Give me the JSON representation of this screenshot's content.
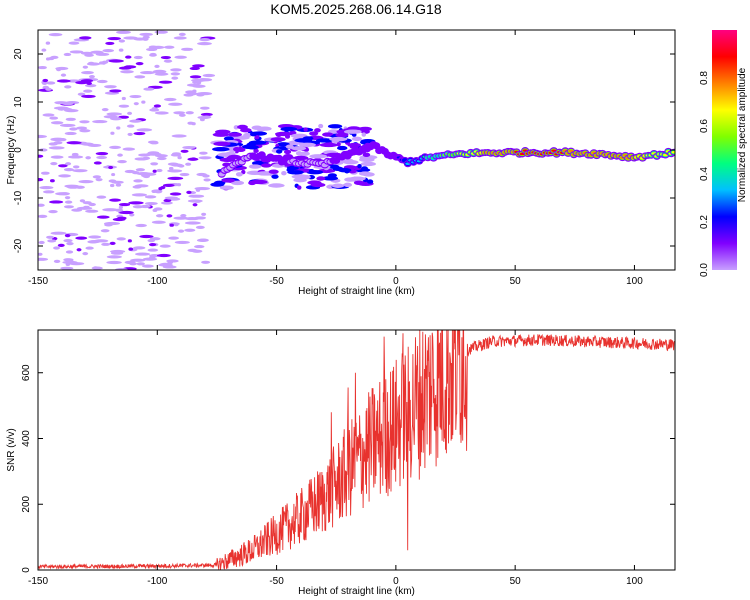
{
  "chart_data": [
    {
      "type": "heatmap",
      "title": "KOM5.2025.268.06.14.G18",
      "xlabel": "Height of straight line (km)",
      "ylabel": "Frequency (Hz)",
      "xlim": [
        -150,
        117
      ],
      "ylim": [
        -25,
        25
      ],
      "x_ticks": [
        -150,
        -100,
        -50,
        0,
        50,
        100
      ],
      "y_ticks": [
        -20,
        -10,
        0,
        10,
        20
      ],
      "colorbar": {
        "label": "Normalized spectral amplitude",
        "range": [
          0,
          1
        ],
        "ticks": [
          "0.0",
          "0.2",
          "0.4",
          "0.6",
          "0.8"
        ],
        "colors": [
          "#ffffff",
          "#c8a0ff",
          "#8000ff",
          "#0000ff",
          "#00c0ff",
          "#00ff80",
          "#80ff00",
          "#ffff00",
          "#ff8000",
          "#ff0000",
          "#ff0080"
        ]
      },
      "signal_track": [
        {
          "x": -73,
          "f": -5.0,
          "amp": 0.18
        },
        {
          "x": -60,
          "f": -1.0,
          "amp": 0.2
        },
        {
          "x": -45,
          "f": -2.5,
          "amp": 0.2
        },
        {
          "x": -30,
          "f": -3.0,
          "amp": 0.18
        },
        {
          "x": -20,
          "f": -1.0,
          "amp": 0.25
        },
        {
          "x": -10,
          "f": 1.0,
          "amp": 0.3
        },
        {
          "x": -3,
          "f": -1.0,
          "amp": 0.25
        },
        {
          "x": 5,
          "f": -2.5,
          "amp": 0.35
        },
        {
          "x": 15,
          "f": -1.5,
          "amp": 0.5
        },
        {
          "x": 30,
          "f": -0.7,
          "amp": 0.7
        },
        {
          "x": 50,
          "f": -0.5,
          "amp": 0.85
        },
        {
          "x": 70,
          "f": -0.5,
          "amp": 0.85
        },
        {
          "x": 85,
          "f": -0.8,
          "amp": 0.8
        },
        {
          "x": 100,
          "f": -1.5,
          "amp": 0.75
        },
        {
          "x": 117,
          "f": -0.5,
          "amp": 0.7
        }
      ]
    },
    {
      "type": "line",
      "title": "",
      "xlabel": "Height of straight line (km)",
      "ylabel": "SNR (v/v)",
      "xlim": [
        -150,
        117
      ],
      "ylim": [
        0,
        730
      ],
      "x_ticks": [
        -150,
        -100,
        -50,
        0,
        50,
        100
      ],
      "y_ticks": [
        0,
        200,
        400,
        600
      ],
      "color": "#e8322e",
      "trend": [
        {
          "x": -150,
          "y": 10
        },
        {
          "x": -100,
          "y": 12
        },
        {
          "x": -75,
          "y": 15
        },
        {
          "x": -60,
          "y": 60
        },
        {
          "x": -50,
          "y": 110
        },
        {
          "x": -40,
          "y": 160
        },
        {
          "x": -30,
          "y": 220
        },
        {
          "x": -20,
          "y": 300
        },
        {
          "x": -10,
          "y": 380
        },
        {
          "x": 0,
          "y": 440
        },
        {
          "x": 10,
          "y": 520
        },
        {
          "x": 20,
          "y": 600
        },
        {
          "x": 30,
          "y": 670
        },
        {
          "x": 40,
          "y": 695
        },
        {
          "x": 60,
          "y": 700
        },
        {
          "x": 80,
          "y": 695
        },
        {
          "x": 100,
          "y": 690
        },
        {
          "x": 117,
          "y": 685
        }
      ],
      "spikes": [
        {
          "x": -27,
          "y": 480
        },
        {
          "x": -20,
          "y": 555
        },
        {
          "x": -17,
          "y": 600
        },
        {
          "x": -5,
          "y": 710
        },
        {
          "x": 3,
          "y": 720
        },
        {
          "x": 5,
          "y": 60
        }
      ]
    }
  ]
}
